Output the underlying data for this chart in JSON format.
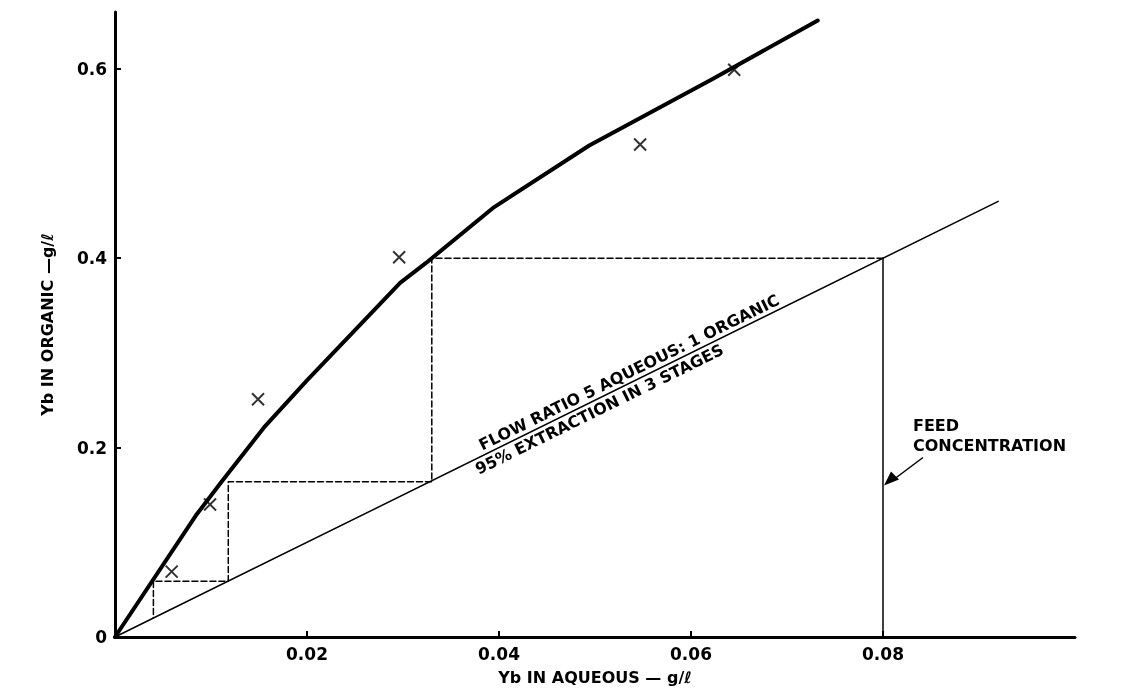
{
  "chart_data": {
    "type": "line",
    "xlabel": "Yb IN AQUEOUS — g/ℓ",
    "ylabel": "Yb IN ORGANIC —g/ℓ",
    "xlim": [
      0,
      0.1
    ],
    "ylim": [
      0,
      0.66
    ],
    "xticks": [
      0.02,
      0.04,
      0.06,
      0.08
    ],
    "yticks": [
      0,
      0.2,
      0.4,
      0.6
    ],
    "grid": false,
    "series": [
      {
        "color": "#000000",
        "marker": "none",
        "line_style": "solid",
        "x": [
          0,
          0.0084,
          0.0111,
          0.0155,
          0.02,
          0.0297,
          0.0324,
          0.0395,
          0.0494,
          0.0622,
          0.0732
        ],
        "values": [
          0,
          0.128,
          0.164,
          0.221,
          0.271,
          0.374,
          0.395,
          0.454,
          0.519,
          0.589,
          0.651
        ]
      },
      {
        "type": "scatter",
        "color": "#000000",
        "marker": "cross",
        "x": [
          0.0059,
          0.0099,
          0.0149,
          0.0296,
          0.0547,
          0.0645
        ],
        "values": [
          0.069,
          0.14,
          0.251,
          0.401,
          0.52,
          0.599
        ]
      },
      {
        "color": "#000000",
        "marker": "none",
        "line_style": "solid",
        "x": [
          0,
          0.092
        ],
        "values": [
          0,
          0.46
        ]
      },
      {
        "color": "#000000",
        "marker": "none",
        "line_style": "dashed",
        "x": [
          0.08,
          0.033,
          0.033,
          0.0118,
          0.0118,
          0.004,
          0.004
        ],
        "values": [
          0.4,
          0.4,
          0.164,
          0.164,
          0.059,
          0.059,
          0.02
        ]
      },
      {
        "color": "#000000",
        "marker": "none",
        "line_style": "solid",
        "x": [
          0.08,
          0.08
        ],
        "values": [
          0,
          0.4
        ]
      }
    ],
    "annotations": [
      {
        "text": "FLOW RATIO 5 AQUEOUS: 1 ORGANIC",
        "x": 0.054,
        "y": 0.27
      },
      {
        "text": "95% EXTRACTION IN 3 STAGES",
        "x": 0.05,
        "y": 0.25
      },
      {
        "text": "FEED\nCONCENTRATION",
        "x": 0.08,
        "y": 0.16
      }
    ]
  }
}
